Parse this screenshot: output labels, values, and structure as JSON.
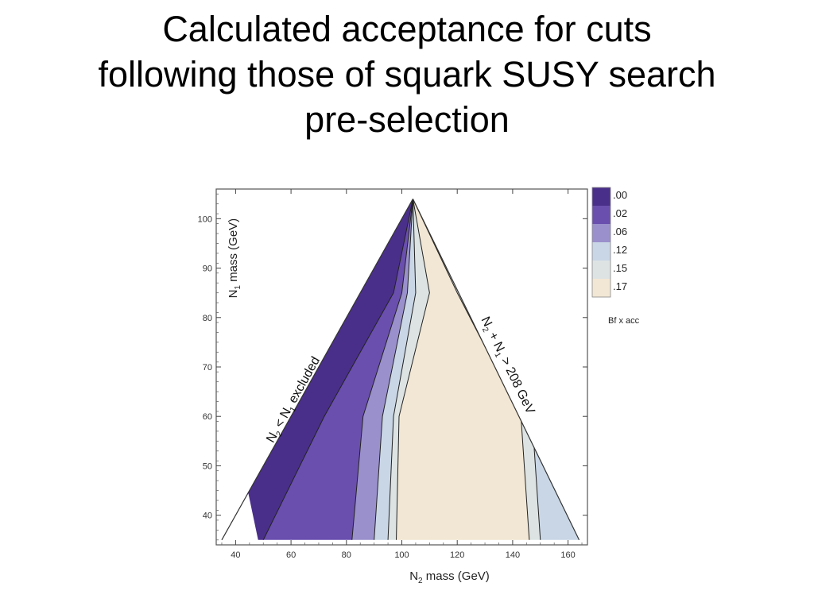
{
  "slide": {
    "title_lines": [
      "Calculated acceptance for cuts",
      "following those of squark SUSY search",
      "pre-selection"
    ]
  },
  "colors": {
    "band_0": "#4a2f8a",
    "band_1": "#6a4fae",
    "band_2": "#9a90cc",
    "band_3": "#c9d6e5",
    "band_4": "#dde3e3",
    "band_5": "#f2e7d4",
    "contour_line": "#222222"
  },
  "chart_data": {
    "type": "heatmap",
    "subtype": "filled contour",
    "title": "",
    "xlabel": {
      "main": "N",
      "sub": "2",
      "rest": " mass (GeV)"
    },
    "ylabel": {
      "main": "N",
      "sub": "1",
      "rest": " mass (GeV)"
    },
    "xlim": [
      33,
      167
    ],
    "ylim": [
      34,
      106
    ],
    "xticks": [
      40,
      60,
      80,
      100,
      120,
      140,
      160
    ],
    "yticks": [
      40,
      50,
      60,
      70,
      80,
      90,
      100
    ],
    "grid": false,
    "legend": {
      "title": "Bf x acc",
      "placement": "right",
      "levels": [
        ".00",
        ".02",
        ".06",
        ".12",
        ".15",
        ".17"
      ]
    },
    "region_boundaries": [
      {
        "label": "N2 < N1 excluded",
        "from": [
          35,
          35
        ],
        "to": [
          104,
          104
        ]
      },
      {
        "label": "N2 + N1 > 208 GeV",
        "from": [
          104,
          104
        ],
        "to": [
          164,
          35
        ]
      }
    ],
    "annotations": [
      {
        "text_parts": [
          "N",
          "2",
          " < N",
          "1",
          " excluded"
        ],
        "at": [
          62,
          63
        ]
      },
      {
        "text_parts": [
          "N",
          "2",
          " + N",
          "1",
          " > 208 GeV"
        ],
        "at": [
          137,
          70
        ]
      }
    ],
    "contour_boundaries_at_y35": [
      {
        "between": ".00/.02",
        "x": 50
      },
      {
        "between": ".02/.06",
        "x": 82
      },
      {
        "between": ".06/.12",
        "x": 90
      },
      {
        "between": ".12/.15",
        "x": 95
      },
      {
        "between": ".15/.17",
        "x": 98
      },
      {
        "between": ".17/.15",
        "x": 146
      },
      {
        "between": ".15/.12",
        "x": 150
      }
    ],
    "contour_boundaries_at_y60": [
      {
        "between": ".00/.02",
        "x": 72
      },
      {
        "between": ".02/.06",
        "x": 86
      },
      {
        "between": ".06/.12",
        "x": 93
      },
      {
        "between": ".12/.15",
        "x": 97
      },
      {
        "between": ".15/.17",
        "x": 99
      },
      {
        "between": ".17/.15",
        "x": 143
      },
      {
        "between": ".15/.12",
        "x": 147
      }
    ],
    "contour_boundaries_at_y85": [
      {
        "between": ".00/.02",
        "x": 97
      },
      {
        "between": ".02/.06",
        "x": 100
      },
      {
        "between": ".06/.12",
        "x": 102
      },
      {
        "between": ".12/.15",
        "x": 105
      },
      {
        "between": ".15/.17",
        "x": 110
      },
      {
        "between": ".17/.15",
        "x": 120
      },
      {
        "between": ".15/.12",
        "x": 121
      }
    ]
  }
}
